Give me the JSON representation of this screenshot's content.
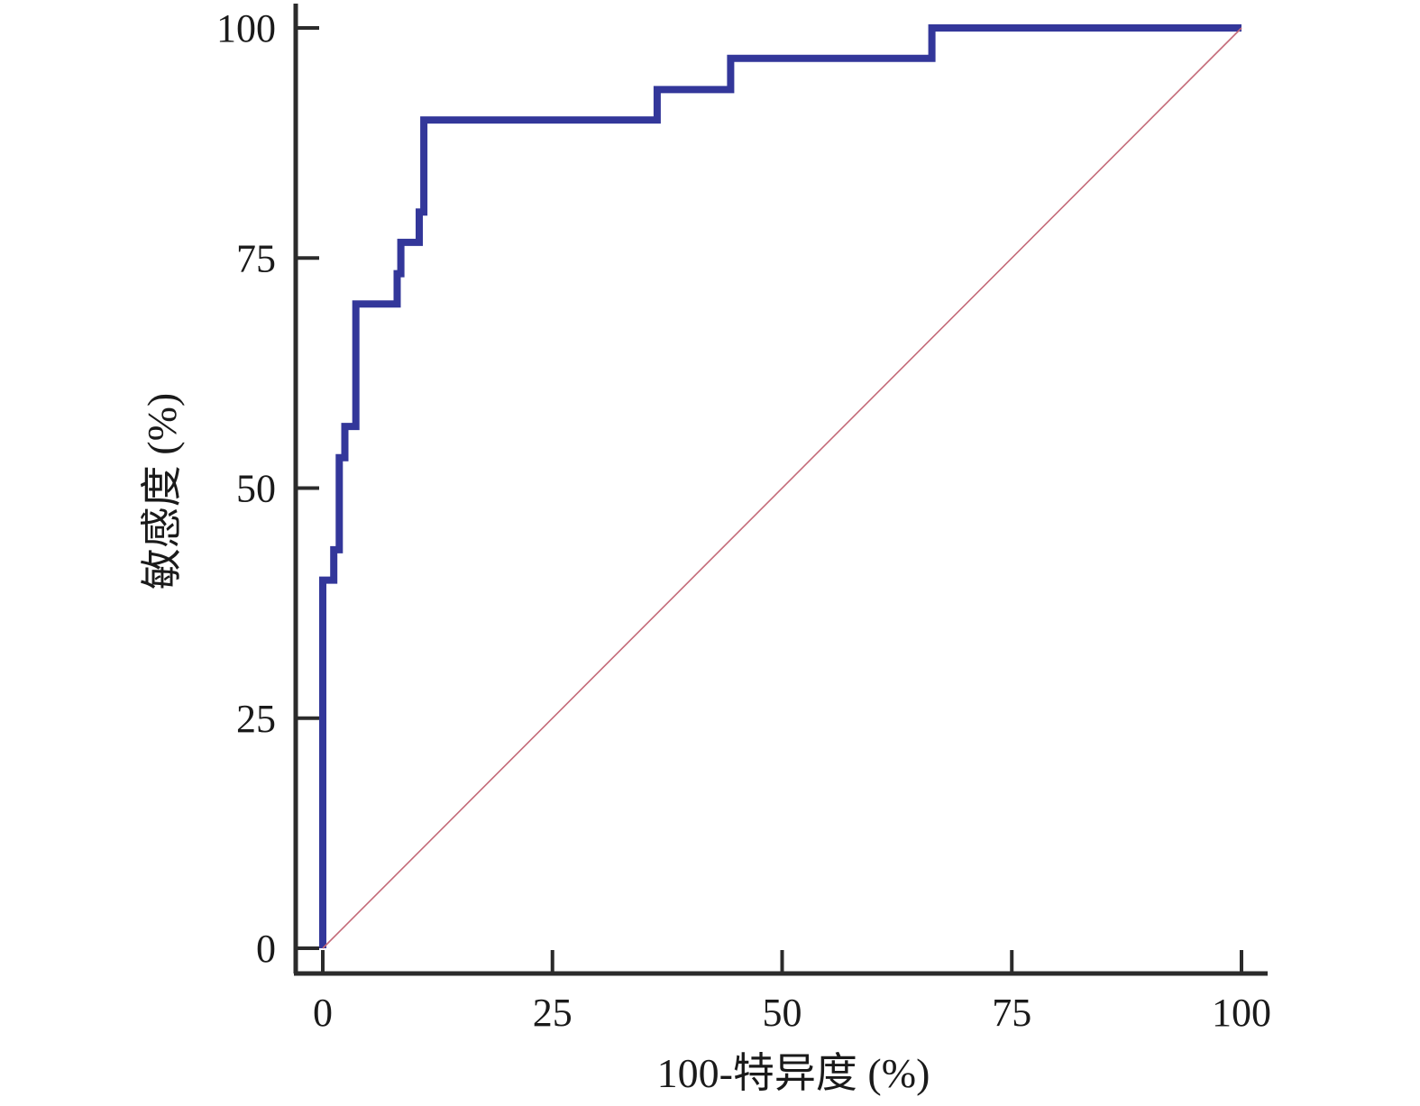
{
  "chart_data": {
    "type": "line",
    "title": "",
    "xlabel": "100-特异度 (%)",
    "ylabel": "敏感度 (%)",
    "xlim": [
      0,
      100
    ],
    "ylim": [
      0,
      100
    ],
    "xticks": [
      0,
      25,
      50,
      75,
      100
    ],
    "yticks": [
      0,
      25,
      50,
      75,
      100
    ],
    "x_tick_labels": [
      "0",
      "25",
      "50",
      "75",
      100
    ],
    "y_tick_labels": [
      "0",
      "25",
      "50",
      "75",
      "100"
    ],
    "grid": false,
    "legend": "none",
    "series": [
      {
        "style": "step",
        "color": "#33379a",
        "points": [
          [
            0,
            0
          ],
          [
            0,
            40
          ],
          [
            1.2,
            40
          ],
          [
            1.2,
            43.3
          ],
          [
            1.8,
            43.3
          ],
          [
            1.8,
            53.3
          ],
          [
            2.4,
            53.3
          ],
          [
            2.4,
            56.7
          ],
          [
            3.6,
            56.7
          ],
          [
            3.6,
            70
          ],
          [
            8.1,
            70
          ],
          [
            8.1,
            73.3
          ],
          [
            8.5,
            73.3
          ],
          [
            8.5,
            76.7
          ],
          [
            10.5,
            76.7
          ],
          [
            10.5,
            80
          ],
          [
            11.0,
            80
          ],
          [
            11.0,
            90
          ],
          [
            36.4,
            90
          ],
          [
            36.4,
            93.3
          ],
          [
            44.4,
            93.3
          ],
          [
            44.4,
            96.7
          ],
          [
            66.3,
            96.7
          ],
          [
            66.3,
            100
          ],
          [
            100,
            100
          ]
        ]
      },
      {
        "style": "reference",
        "color": "#c46a78",
        "points": [
          [
            0,
            0
          ],
          [
            100,
            100
          ]
        ]
      }
    ]
  }
}
